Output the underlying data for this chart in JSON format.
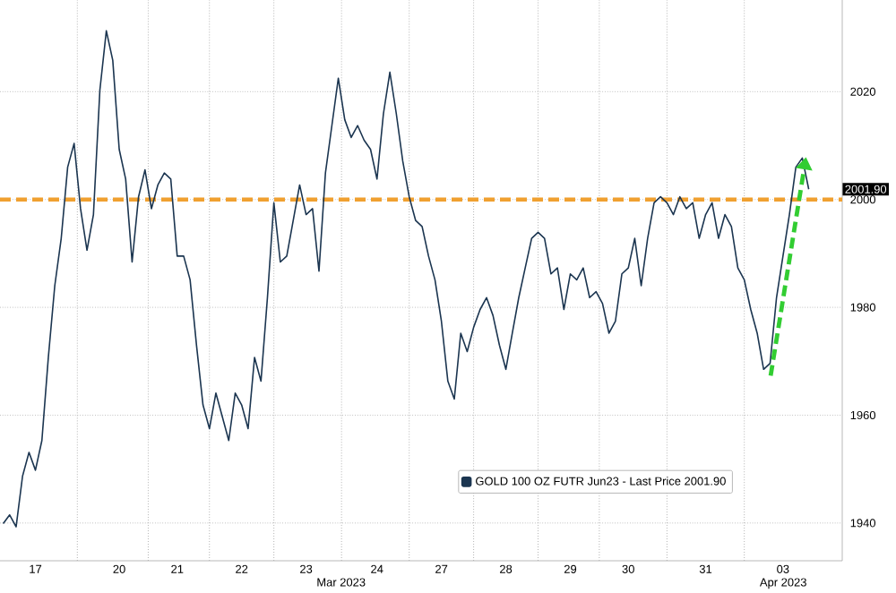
{
  "chart_data": {
    "type": "line",
    "categories": [
      null,
      null,
      null,
      null,
      null,
      "17",
      null,
      null,
      null,
      null,
      null,
      null,
      null,
      null,
      null,
      null,
      null,
      null,
      "20",
      null,
      null,
      null,
      null,
      null,
      null,
      null,
      null,
      "21",
      null,
      null,
      null,
      null,
      null,
      null,
      null,
      null,
      null,
      "22",
      null,
      null,
      null,
      null,
      null,
      null,
      null,
      null,
      null,
      "23",
      null,
      null,
      null,
      null,
      null,
      null,
      null,
      null,
      null,
      null,
      "24",
      null,
      null,
      null,
      null,
      null,
      null,
      null,
      null,
      null,
      "27",
      null,
      null,
      null,
      null,
      null,
      null,
      null,
      null,
      null,
      "28",
      null,
      null,
      null,
      null,
      null,
      null,
      null,
      null,
      null,
      "29",
      null,
      null,
      null,
      null,
      null,
      null,
      null,
      null,
      "30",
      null,
      null,
      null,
      null,
      null,
      null,
      null,
      null,
      null,
      null,
      null,
      "31",
      null,
      null,
      null,
      null,
      null,
      null,
      null,
      null,
      null,
      null,
      null,
      "03",
      null,
      null,
      null,
      null
    ],
    "series": [
      {
        "name": "GOLD 100 OZ FUTR Jun23 - Last Price 2001.90",
        "color": "#1b3550",
        "values": [
          1939.9,
          1941.5,
          1939.3,
          1948.7,
          1953.1,
          1949.8,
          1955.3,
          1970.7,
          1984.0,
          1992.8,
          2006.0,
          2010.4,
          1998.3,
          1990.6,
          1997.2,
          2020.3,
          2031.3,
          2025.8,
          2009.3,
          2003.8,
          1988.4,
          2000.5,
          2005.5,
          1998.3,
          2002.7,
          2004.9,
          2003.8,
          1989.5,
          1989.5,
          1985.1,
          1972.9,
          1961.9,
          1957.5,
          1964.1,
          1959.7,
          1955.3,
          1964.1,
          1961.9,
          1957.5,
          1970.7,
          1966.3,
          1981.8,
          1999.4,
          1988.4,
          1989.5,
          1996.1,
          2002.7,
          1997.2,
          1998.3,
          1986.7,
          2004.9,
          2013.7,
          2022.5,
          2014.8,
          2011.5,
          2013.7,
          2011.0,
          2009.3,
          2003.8,
          2015.9,
          2023.6,
          2015.9,
          2007.1,
          2000.5,
          1996.1,
          1995.0,
          1989.5,
          1985.1,
          1977.4,
          1966.3,
          1963.0,
          1975.2,
          1971.8,
          1976.3,
          1979.6,
          1981.8,
          1978.5,
          1973.0,
          1968.5,
          1975.2,
          1981.8,
          1987.3,
          1992.8,
          1993.9,
          1992.8,
          1986.2,
          1987.3,
          1979.6,
          1986.2,
          1985.1,
          1987.3,
          1981.8,
          1982.9,
          1980.7,
          1975.2,
          1977.4,
          1986.2,
          1987.3,
          1992.8,
          1984.0,
          1992.8,
          1999.4,
          2000.5,
          1999.4,
          1997.2,
          2000.5,
          1998.3,
          1999.4,
          1992.8,
          1997.2,
          1999.4,
          1992.8,
          1997.2,
          1995.0,
          1987.3,
          1985.1,
          1979.6,
          1975.2,
          1968.5,
          1969.6,
          1981.8,
          1989.5,
          1997.2,
          2006.0,
          2007.7,
          2001.9
        ]
      }
    ],
    "ylim": [
      1933,
      2037
    ],
    "yticks": [
      1940,
      1960,
      1980,
      2000,
      2020
    ],
    "grid": true,
    "legend": "bottom right",
    "marker": "none",
    "ref_lines": [
      {
        "axis": "y",
        "value": 2000,
        "color": "#f0a030",
        "line_style": "dashed"
      }
    ],
    "annotations": [
      "2001.90",
      "Mar 2023",
      "Apr 2023"
    ]
  }
}
